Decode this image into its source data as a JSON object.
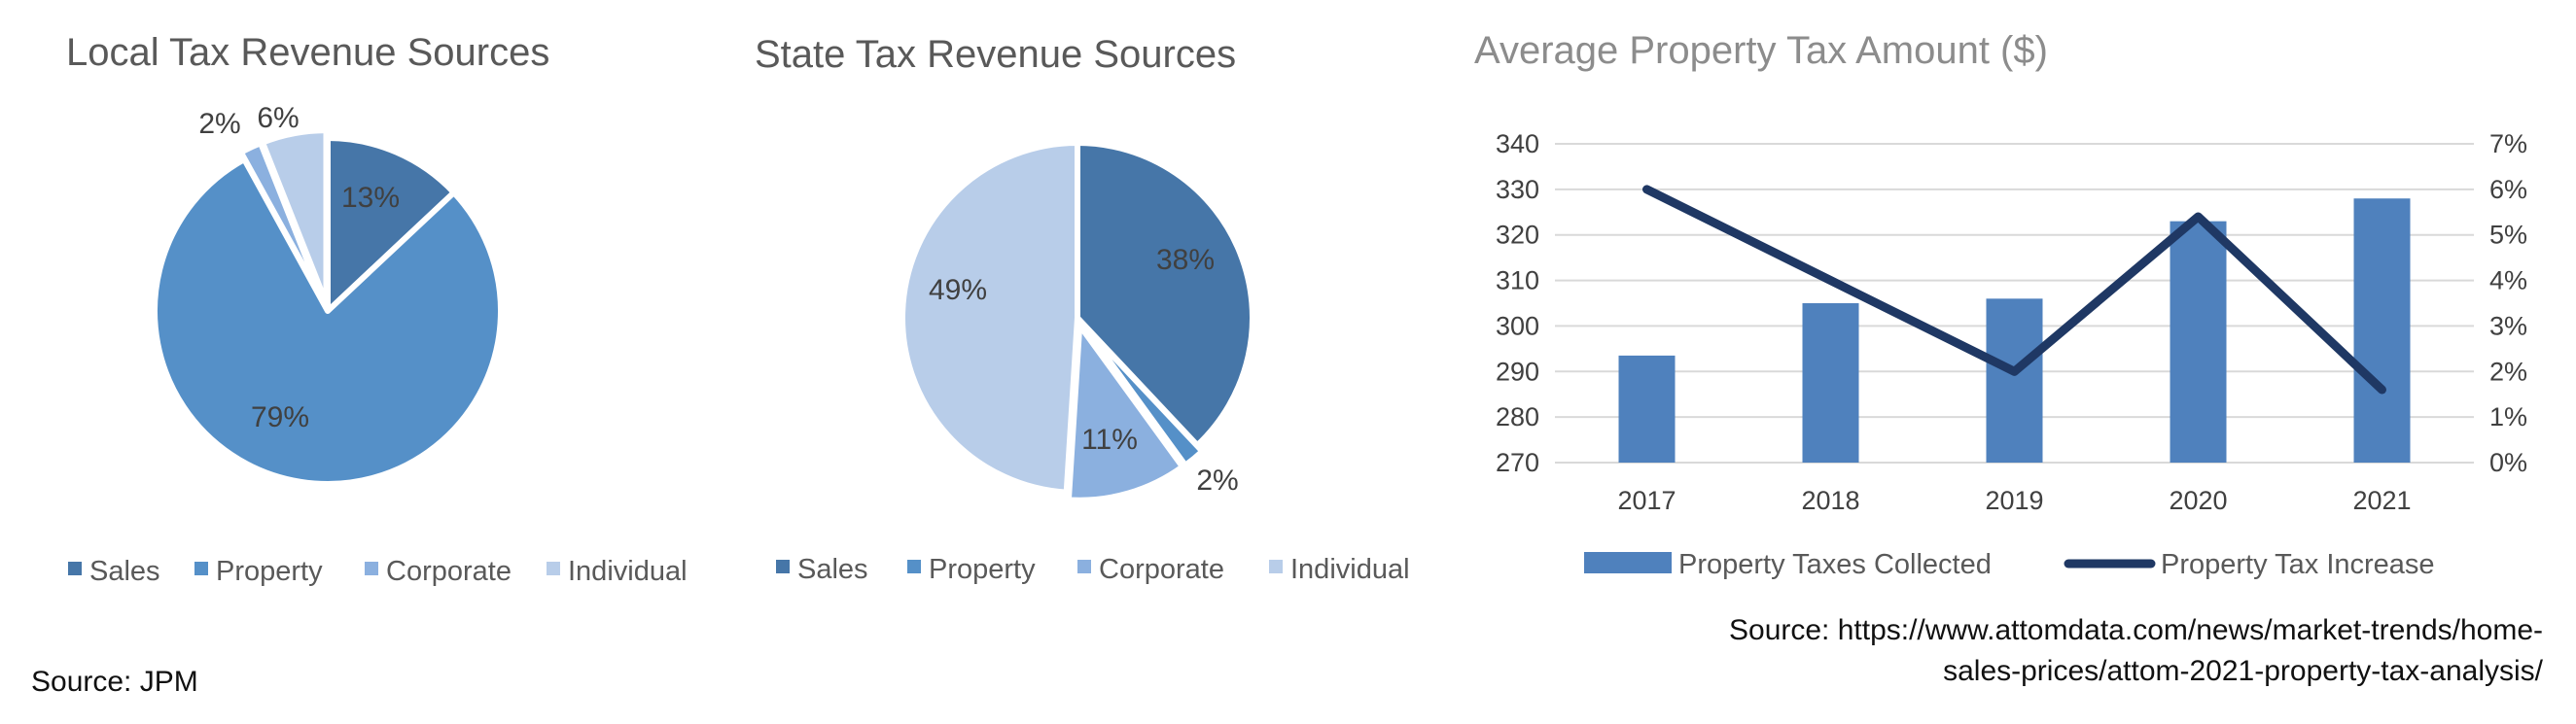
{
  "colors": {
    "sales": "#4676a8",
    "property": "#5590c8",
    "corporate": "#8bb0df",
    "individual": "#b8cde9",
    "bar": "#4f81bd",
    "line": "#1f3864",
    "grid": "#d9d9d9"
  },
  "chart_data": [
    {
      "type": "pie",
      "title": "Local Tax Revenue Sources",
      "categories": [
        "Sales",
        "Property",
        "Corporate",
        "Individual"
      ],
      "values": [
        13,
        79,
        2,
        6
      ],
      "labels": [
        "13%",
        "79%",
        "2%",
        "6%"
      ],
      "legend": "bottom",
      "source": "Source: JPM"
    },
    {
      "type": "pie",
      "title": "State Tax Revenue Sources",
      "categories": [
        "Sales",
        "Property",
        "Corporate",
        "Individual"
      ],
      "values": [
        38,
        2,
        11,
        49
      ],
      "labels": [
        "38%",
        "2%",
        "11%",
        "49%"
      ],
      "legend": "bottom"
    },
    {
      "type": "bar",
      "title": "Average Property Tax Amount ($)",
      "categories": [
        "2017",
        "2018",
        "2019",
        "2020",
        "2021"
      ],
      "y_ticks": [
        "270",
        "280",
        "290",
        "300",
        "310",
        "320",
        "330",
        "340"
      ],
      "y2_ticks": [
        "0%",
        "1%",
        "2%",
        "3%",
        "4%",
        "5%",
        "6%",
        "7%"
      ],
      "ylim": [
        270,
        340
      ],
      "y2lim": [
        0,
        7
      ],
      "grid": true,
      "legend": "bottom",
      "series": [
        {
          "name": "Property Taxes Collected",
          "type": "bar",
          "axis": "left",
          "values": [
            293.5,
            305,
            306,
            323,
            328
          ]
        },
        {
          "name": "Property Tax Increase",
          "type": "line",
          "axis": "right",
          "values": [
            6.0,
            4.0,
            2.0,
            5.4,
            1.6
          ]
        }
      ],
      "source_line1": "Source: https://www.attomdata.com/news/market-trends/home-",
      "source_line2": "sales-prices/attom-2021-property-tax-analysis/"
    }
  ]
}
